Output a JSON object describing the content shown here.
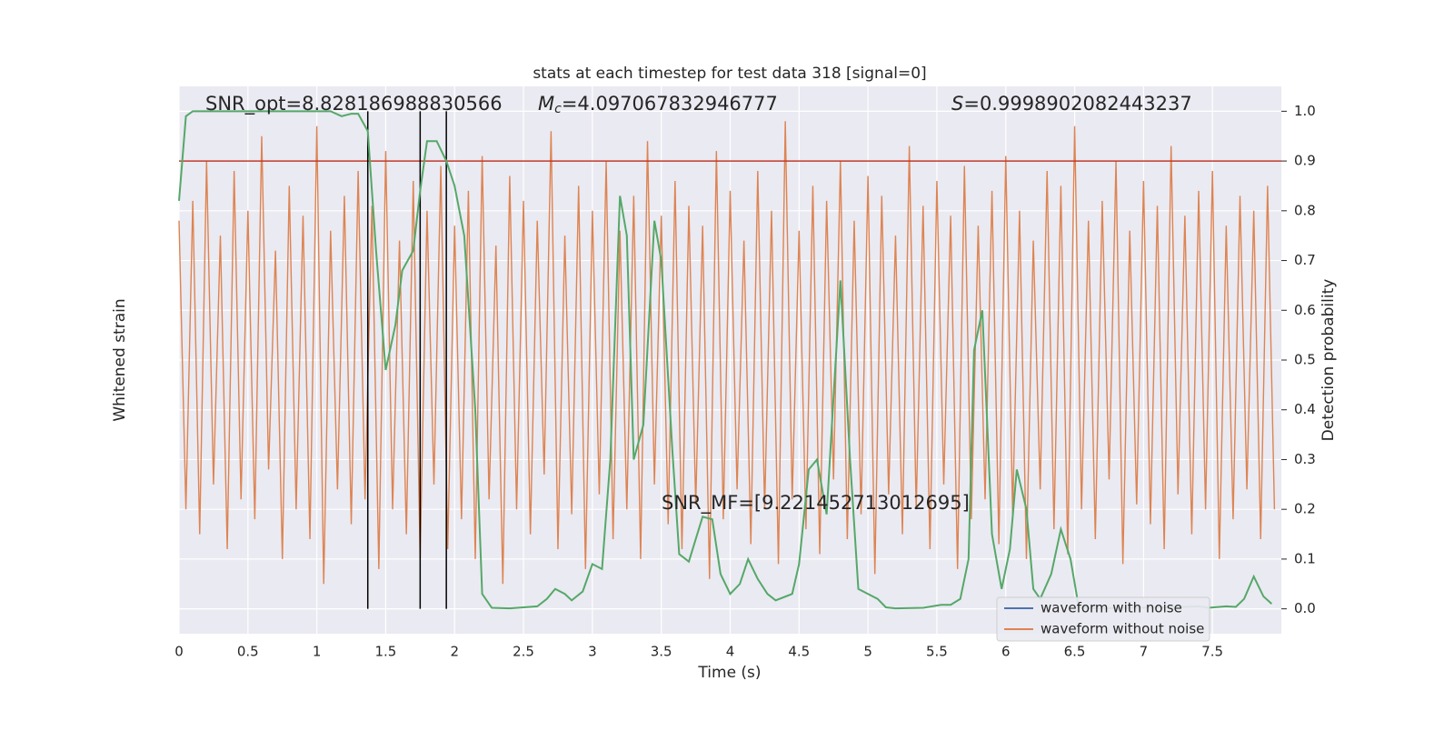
{
  "chart_data": {
    "type": "line",
    "title": "stats at each timestep for test data 318 [signal=0]",
    "xlabel": "Time (s)",
    "ylabel": "Whitened strain",
    "y2label": "Detection probability",
    "xlim": [
      0,
      8.0
    ],
    "xticks": [
      0.0,
      0.5,
      1.0,
      1.5,
      2.0,
      2.5,
      3.0,
      3.5,
      4.0,
      4.5,
      5.0,
      5.5,
      6.0,
      6.5,
      7.0,
      7.5
    ],
    "y2lim": [
      -0.05,
      1.05
    ],
    "y2ticks": [
      {
        "value": 0,
        "label": "0.0"
      },
      0.1,
      0.2,
      0.3,
      0.4,
      0.5,
      0.6,
      0.7,
      0.8,
      0.9,
      {
        "value": 1,
        "label": "1.0"
      }
    ],
    "grid": true,
    "annotations": {
      "snr_opt": "SNR_opt=8.828186988830566",
      "mc": {
        "symbol": "M",
        "subscript": "c",
        "text": "=4.097067832946777"
      },
      "s": {
        "symbol": "S",
        "text": "=0.9998902082443237"
      },
      "snr_mf": "SNR_MF=[9.221452713012695]"
    },
    "threshold": {
      "value": 0.9,
      "color": "#c0392b"
    },
    "vlines": {
      "x": [
        1.37,
        1.75,
        1.94
      ],
      "color": "#000000"
    },
    "legend_position": "lower right",
    "legend": [
      {
        "name": "waveform with noise",
        "color": "#4c72b0"
      },
      {
        "name": "waveform without noise",
        "color": "#dd8452"
      }
    ],
    "series": [
      {
        "name": "waveform without noise",
        "color": "#dd8452",
        "axis": "y2",
        "x": [
          0,
          0.05,
          0.1,
          0.15,
          0.2,
          0.25,
          0.3,
          0.35,
          0.4,
          0.45,
          0.5,
          0.55,
          0.6,
          0.65,
          0.7,
          0.75,
          0.8,
          0.85,
          0.9,
          0.95,
          1,
          1.05,
          1.1,
          1.15,
          1.2,
          1.25,
          1.3,
          1.35,
          1.4,
          1.45,
          1.5,
          1.55,
          1.6,
          1.65,
          1.7,
          1.75,
          1.8,
          1.85,
          1.9,
          1.95,
          2,
          2.05,
          2.1,
          2.15,
          2.2,
          2.25,
          2.3,
          2.35,
          2.4,
          2.45,
          2.5,
          2.55,
          2.6,
          2.65,
          2.7,
          2.75,
          2.8,
          2.85,
          2.9,
          2.95,
          3,
          3.05,
          3.1,
          3.15,
          3.2,
          3.25,
          3.3,
          3.35,
          3.4,
          3.45,
          3.5,
          3.55,
          3.6,
          3.65,
          3.7,
          3.75,
          3.8,
          3.85,
          3.9,
          3.95,
          4,
          4.05,
          4.1,
          4.15,
          4.2,
          4.25,
          4.3,
          4.35,
          4.4,
          4.45,
          4.5,
          4.55,
          4.6,
          4.65,
          4.7,
          4.75,
          4.8,
          4.85,
          4.9,
          4.95,
          5,
          5.05,
          5.1,
          5.15,
          5.2,
          5.25,
          5.3,
          5.35,
          5.4,
          5.45,
          5.5,
          5.55,
          5.6,
          5.65,
          5.7,
          5.75,
          5.8,
          5.85,
          5.9,
          5.95,
          6,
          6.05,
          6.1,
          6.15,
          6.2,
          6.25,
          6.3,
          6.35,
          6.4,
          6.45,
          6.5,
          6.55,
          6.6,
          6.65,
          6.7,
          6.75,
          6.8,
          6.85,
          6.9,
          6.95,
          7,
          7.05,
          7.1,
          7.15,
          7.2,
          7.25,
          7.3,
          7.35,
          7.4,
          7.45,
          7.5,
          7.55,
          7.6,
          7.65,
          7.7,
          7.75,
          7.8,
          7.85,
          7.9,
          7.95
        ],
        "values": [
          0.78,
          0.2,
          0.82,
          0.15,
          0.9,
          0.25,
          0.75,
          0.12,
          0.88,
          0.22,
          0.8,
          0.18,
          0.95,
          0.28,
          0.72,
          0.1,
          0.85,
          0.2,
          0.79,
          0.14,
          0.97,
          0.05,
          0.76,
          0.24,
          0.83,
          0.17,
          0.88,
          0.22,
          0.81,
          0.08,
          0.92,
          0.2,
          0.74,
          0.15,
          0.86,
          0.1,
          0.8,
          0.25,
          0.89,
          0.12,
          0.77,
          0.18,
          0.84,
          0.1,
          0.91,
          0.22,
          0.73,
          0.05,
          0.87,
          0.2,
          0.82,
          0.15,
          0.78,
          0.27,
          0.96,
          0.12,
          0.75,
          0.19,
          0.85,
          0.08,
          0.8,
          0.23,
          0.9,
          0.14,
          0.76,
          0.2,
          0.83,
          0.1,
          0.94,
          0.25,
          0.79,
          0.17,
          0.86,
          0.12,
          0.81,
          0.21,
          0.77,
          0.06,
          0.92,
          0.18,
          0.84,
          0.24,
          0.74,
          0.13,
          0.88,
          0.2,
          0.8,
          0.09,
          0.98,
          0.22,
          0.76,
          0.16,
          0.85,
          0.11,
          0.82,
          0.26,
          0.9,
          0.14,
          0.78,
          0.19,
          0.87,
          0.07,
          0.83,
          0.23,
          0.75,
          0.15,
          0.93,
          0.2,
          0.81,
          0.12,
          0.86,
          0.25,
          0.79,
          0.08,
          0.89,
          0.18,
          0.77,
          0.22,
          0.84,
          0.13,
          0.91,
          0.19,
          0.8,
          0.1,
          0.74,
          0.24,
          0.88,
          0.16,
          0.85,
          0.11,
          0.97,
          0.2,
          0.78,
          0.14,
          0.82,
          0.26,
          0.9,
          0.09,
          0.76,
          0.21,
          0.86,
          0.17,
          0.81,
          0.12,
          0.93,
          0.23,
          0.79,
          0.15,
          0.84,
          0.2,
          0.88,
          0.1,
          0.77,
          0.18,
          0.83,
          0.24,
          0.8,
          0.14,
          0.85,
          0.2
        ]
      },
      {
        "name": "detection probability",
        "color": "#55a868",
        "axis": "y2",
        "x": [
          0,
          0.05,
          0.1,
          0.3,
          0.5,
          0.7,
          0.9,
          1.1,
          1.18,
          1.25,
          1.3,
          1.37,
          1.43,
          1.5,
          1.57,
          1.62,
          1.7,
          1.75,
          1.8,
          1.87,
          1.94,
          2.0,
          2.07,
          2.15,
          2.2,
          2.27,
          2.4,
          2.6,
          2.67,
          2.73,
          2.8,
          2.85,
          2.93,
          3.0,
          3.07,
          3.13,
          3.2,
          3.25,
          3.3,
          3.37,
          3.45,
          3.5,
          3.58,
          3.63,
          3.7,
          3.8,
          3.87,
          3.93,
          4.0,
          4.07,
          4.13,
          4.2,
          4.27,
          4.33,
          4.45,
          4.5,
          4.57,
          4.63,
          4.7,
          4.8,
          4.87,
          4.93,
          5.0,
          5.07,
          5.13,
          5.2,
          5.4,
          5.53,
          5.6,
          5.67,
          5.73,
          5.77,
          5.83,
          5.9,
          5.97,
          6.03,
          6.08,
          6.15,
          6.2,
          6.25,
          6.33,
          6.4,
          6.47,
          6.53,
          6.65,
          6.9,
          7.2,
          7.3,
          7.4,
          7.47,
          7.6,
          7.67,
          7.73,
          7.8,
          7.87,
          7.93
        ],
        "values": [
          0.82,
          0.99,
          1.0,
          1.0,
          1.0,
          1.0,
          1.0,
          1.0,
          0.99,
          0.995,
          0.995,
          0.96,
          0.72,
          0.48,
          0.57,
          0.68,
          0.72,
          0.84,
          0.94,
          0.94,
          0.9,
          0.85,
          0.75,
          0.4,
          0.03,
          0.002,
          0.001,
          0.005,
          0.02,
          0.04,
          0.03,
          0.017,
          0.035,
          0.09,
          0.08,
          0.3,
          0.83,
          0.75,
          0.3,
          0.37,
          0.78,
          0.7,
          0.32,
          0.11,
          0.095,
          0.185,
          0.18,
          0.07,
          0.03,
          0.05,
          0.1,
          0.06,
          0.03,
          0.017,
          0.03,
          0.09,
          0.28,
          0.3,
          0.19,
          0.66,
          0.3,
          0.04,
          0.03,
          0.02,
          0.003,
          0.001,
          0.002,
          0.008,
          0.008,
          0.02,
          0.1,
          0.52,
          0.6,
          0.15,
          0.04,
          0.12,
          0.28,
          0.2,
          0.04,
          0.02,
          0.07,
          0.16,
          0.1,
          0.003,
          0.001,
          0.002,
          0.003,
          0.004,
          0.005,
          0.002,
          0.005,
          0.004,
          0.02,
          0.065,
          0.025,
          0.01
        ]
      }
    ]
  }
}
